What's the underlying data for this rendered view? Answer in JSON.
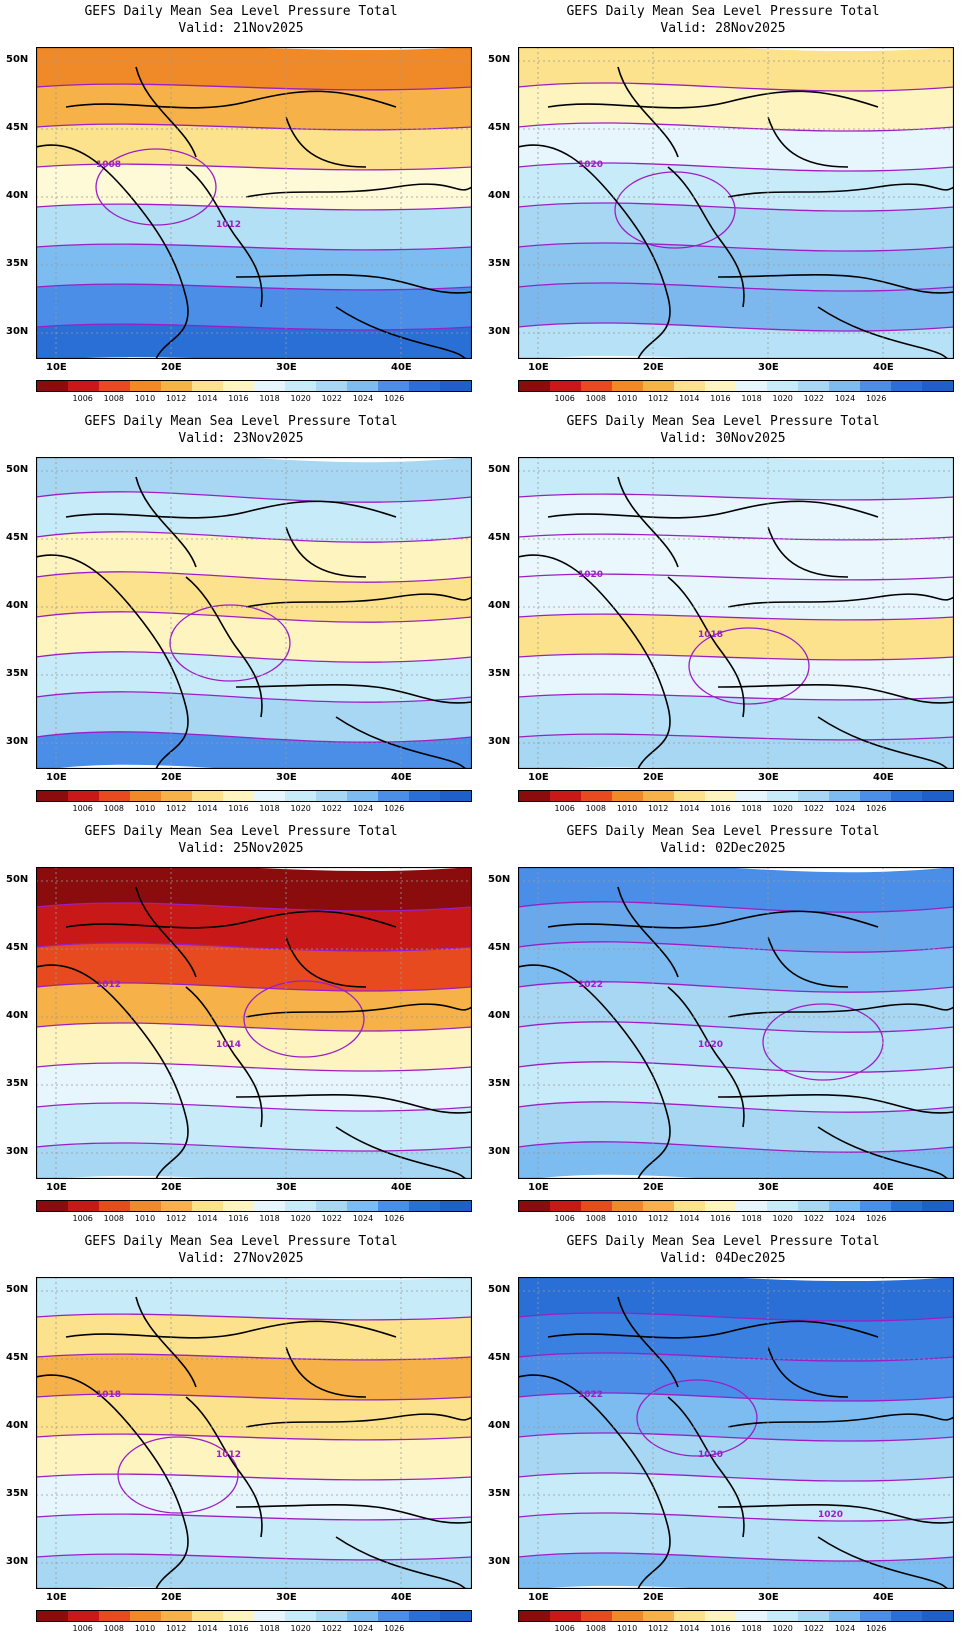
{
  "title_line1": "GEFS Daily Mean Sea Level Pressure Total",
  "panels": [
    {
      "valid": "Valid: 21Nov2025",
      "labels": [
        "1008",
        "1012"
      ],
      "scheme": [
        "#f08a28",
        "#f6b248",
        "#fde28e",
        "#fef9d6",
        "#b3e0f5",
        "#7cbcf0",
        "#4a8ee8",
        "#2a6fd6"
      ]
    },
    {
      "valid": "Valid: 28Nov2025",
      "labels": [
        "1020"
      ],
      "scheme": [
        "#fde28e",
        "#fef4bf",
        "#e6f6fc",
        "#c8ebf9",
        "#a7d7f3",
        "#8cc4f0",
        "#7cb8ee",
        "#b6e1f6"
      ]
    },
    {
      "valid": "Valid: 23Nov2025",
      "labels": [],
      "scheme": [
        "#a7d7f3",
        "#c8ebf9",
        "#fef4bf",
        "#fde28e",
        "#fef4bf",
        "#c8ebf9",
        "#a7d7f3",
        "#4a8ee8"
      ]
    },
    {
      "valid": "Valid: 30Nov2025",
      "labels": [
        "1020",
        "1018"
      ],
      "scheme": [
        "#c8ebf9",
        "#e6f6fc",
        "#eaf8fd",
        "#e6f6fc",
        "#fde28e",
        "#e6f6fc",
        "#b6e1f6",
        "#a7d7f3"
      ]
    },
    {
      "valid": "Valid: 25Nov2025",
      "labels": [
        "1012",
        "1014"
      ],
      "scheme": [
        "#8b0c0c",
        "#c81818",
        "#e74a1e",
        "#f6b248",
        "#fef4bf",
        "#e6f6fc",
        "#c8ebf9",
        "#a7d7f3"
      ]
    },
    {
      "valid": "Valid: 02Dec2025",
      "labels": [
        "1022",
        "1020"
      ],
      "scheme": [
        "#4a8ee8",
        "#6aa8ec",
        "#7cbcf0",
        "#a7d7f3",
        "#b6e1f6",
        "#c8ebf9",
        "#a7d7f3",
        "#7cbcf0"
      ]
    },
    {
      "valid": "Valid: 27Nov2025",
      "labels": [
        "1018",
        "1012"
      ],
      "scheme": [
        "#c8ebf9",
        "#fde28e",
        "#f6b248",
        "#fde28e",
        "#fef4bf",
        "#e6f6fc",
        "#c8ebf9",
        "#a7d7f3"
      ]
    },
    {
      "valid": "Valid: 04Dec2025",
      "labels": [
        "1022",
        "1020",
        "1020"
      ],
      "scheme": [
        "#2a6fd6",
        "#3a80e0",
        "#4a8ee8",
        "#7cbcf0",
        "#a7d7f3",
        "#c8ebf9",
        "#b6e1f6",
        "#7cbcf0"
      ]
    }
  ],
  "lat_labels": [
    "50N",
    "45N",
    "40N",
    "35N",
    "30N"
  ],
  "lon_labels": [
    "10E",
    "20E",
    "30E",
    "40E"
  ],
  "colorbar": {
    "ticks": [
      "1006",
      "1008",
      "1010",
      "1012",
      "1014",
      "1016",
      "1018",
      "1020",
      "1022",
      "1024",
      "1026"
    ],
    "colors": [
      "#8b0c0c",
      "#c81818",
      "#e74a1e",
      "#f08a28",
      "#f6b248",
      "#fde28e",
      "#fef4bf",
      "#e6f6fc",
      "#c8ebf9",
      "#a7d7f3",
      "#7cbcf0",
      "#4a8ee8",
      "#2a6fd6",
      "#1f5fc8"
    ]
  }
}
